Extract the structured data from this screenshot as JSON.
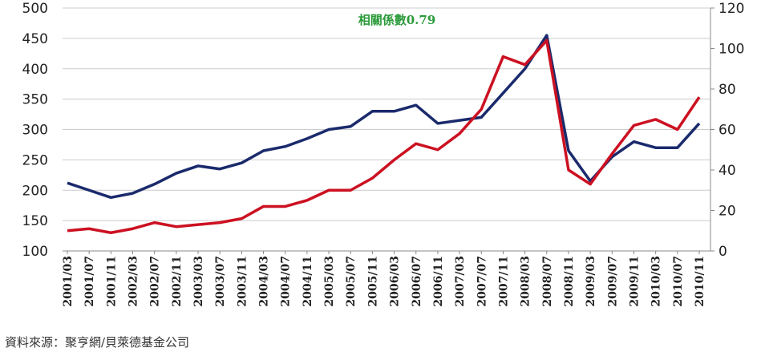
{
  "chart_data": {
    "type": "line",
    "title": "相關係數0.79",
    "source": "資料來源：聚亨網/貝萊德基金公司",
    "categories": [
      "2001/03",
      "2001/07",
      "2001/11",
      "2002/03",
      "2002/07",
      "2002/11",
      "2003/03",
      "2003/07",
      "2003/11",
      "2004/03",
      "2004/07",
      "2004/11",
      "2005/03",
      "2005/07",
      "2005/11",
      "2006/03",
      "2006/07",
      "2006/11",
      "2007/03",
      "2007/07",
      "2007/11",
      "2008/03",
      "2008/07",
      "2008/11",
      "2009/03",
      "2009/07",
      "2009/11",
      "2010/03",
      "2010/07",
      "2010/11"
    ],
    "series": [
      {
        "color": "#1a2a6c",
        "values": [
          212,
          200,
          188,
          195,
          210,
          228,
          240,
          235,
          245,
          265,
          272,
          285,
          300,
          305,
          330,
          330,
          340,
          310,
          315,
          320,
          360,
          400,
          455,
          265,
          215,
          255,
          280,
          270,
          270,
          310
        ]
      },
      {
        "color": "#cc1122",
        "axis": "y2",
        "values": [
          10,
          11,
          9,
          11,
          14,
          12,
          13,
          14,
          16,
          22,
          22,
          25,
          30,
          30,
          36,
          45,
          53,
          50,
          58,
          70,
          96,
          92,
          104,
          40,
          33,
          48,
          62,
          65,
          60,
          76
        ]
      }
    ],
    "ylim": [
      100,
      500
    ],
    "yticks": [
      100,
      150,
      200,
      250,
      300,
      350,
      400,
      450,
      500
    ],
    "y2lim": [
      0,
      120
    ],
    "y2ticks": [
      0,
      20,
      40,
      60,
      80,
      100,
      120
    ],
    "grid": true
  }
}
